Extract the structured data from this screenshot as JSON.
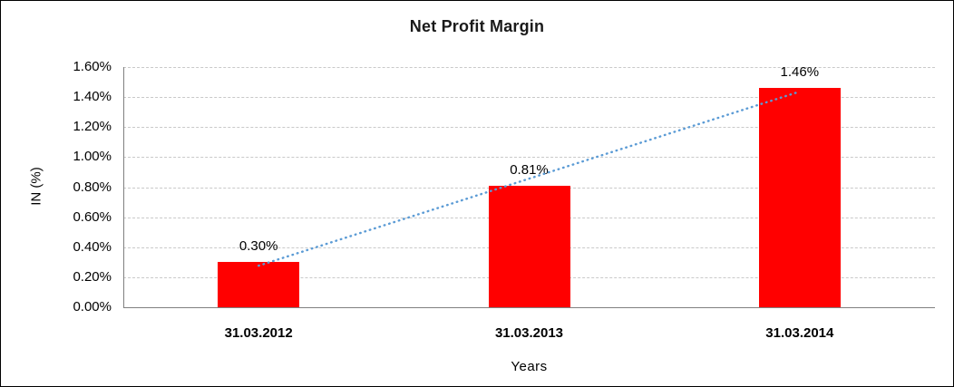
{
  "chart_data": {
    "type": "bar",
    "title": "Net Profit Margin",
    "xlabel": "Years",
    "ylabel": "IN (%)",
    "categories": [
      "31.03.2012",
      "31.03.2013",
      "31.03.2014"
    ],
    "values": [
      0.3,
      0.81,
      1.46
    ],
    "data_labels": [
      "0.30%",
      "0.81%",
      "1.46%"
    ],
    "ylim": [
      0,
      1.6
    ],
    "ytick_step": 0.2,
    "ytick_labels": [
      "0.00%",
      "0.20%",
      "0.40%",
      "0.60%",
      "0.80%",
      "1.00%",
      "1.20%",
      "1.40%",
      "1.60%"
    ],
    "grid": true,
    "legend": "none",
    "bar_color": "#ff0000",
    "trendline": "linear",
    "trendline_color": "#5b9bd5",
    "grid_color": "#c9c9c9",
    "axis_color": "#808080"
  }
}
